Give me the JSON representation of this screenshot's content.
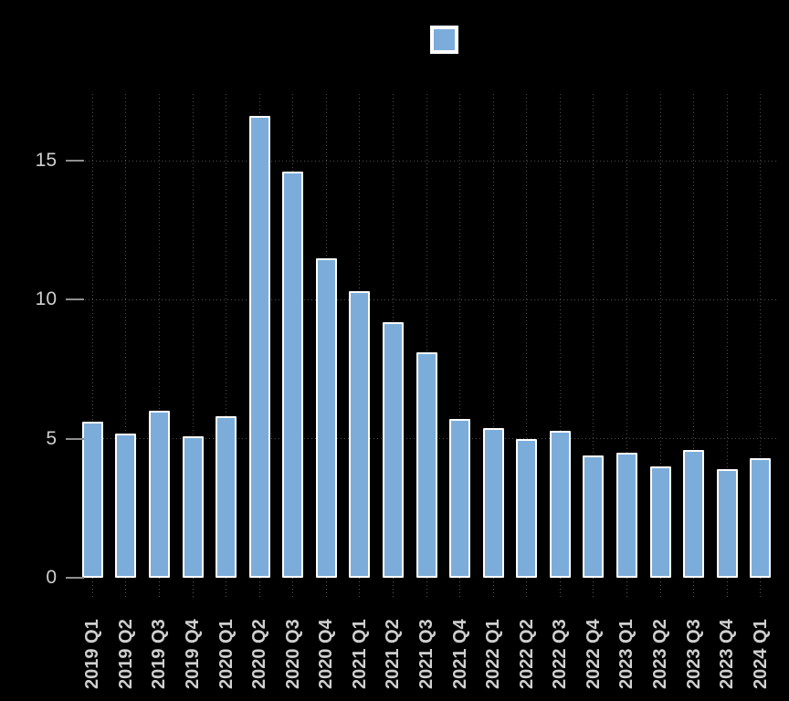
{
  "chart": {
    "background_color": "#000000",
    "grid_color": "#4e4e4e",
    "axis_label_color": "#cfcfcf",
    "legend": {
      "swatch_color": "#7cadda",
      "swatch_border_color": "#ffffff",
      "position": "top-center",
      "label": ""
    }
  },
  "chart_data": {
    "type": "bar",
    "title": "",
    "xlabel": "",
    "ylabel": "",
    "categories": [
      "2019 Q1",
      "2019 Q2",
      "2019 Q3",
      "2019 Q4",
      "2020 Q1",
      "2020 Q2",
      "2020 Q3",
      "2020 Q4",
      "2021 Q1",
      "2021 Q2",
      "2021 Q3",
      "2021 Q4",
      "2022 Q1",
      "2022 Q2",
      "2022 Q3",
      "2022 Q4",
      "2023 Q1",
      "2023 Q2",
      "2023 Q3",
      "2023 Q4",
      "2024 Q1"
    ],
    "values": [
      5.6,
      5.2,
      6.0,
      5.1,
      5.8,
      16.6,
      14.6,
      11.5,
      10.3,
      9.2,
      8.1,
      5.7,
      5.4,
      5.0,
      5.3,
      4.4,
      4.5,
      4.0,
      4.6,
      3.9,
      4.3
    ],
    "yticks": [
      0,
      5,
      10,
      15
    ],
    "ylim": [
      0,
      17.4
    ],
    "grid": true,
    "gridline_style": "dotted",
    "bar_color": "#7cadda",
    "bar_border_color": "#ffffff",
    "x_tick_label_rotation": -90
  }
}
